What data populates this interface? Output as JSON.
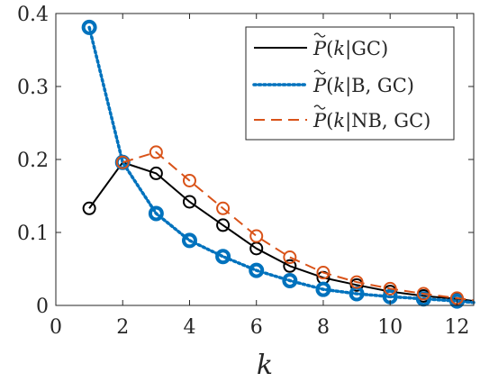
{
  "chart_data": {
    "type": "line",
    "xlabel": "k",
    "ylabel": "",
    "xlim": [
      0,
      12.5
    ],
    "ylim": [
      0,
      0.4
    ],
    "xticks": [
      0,
      2,
      4,
      6,
      8,
      10,
      12
    ],
    "yticks": [
      0,
      0.1,
      0.2,
      0.3,
      0.4
    ],
    "xtick_labels": [
      "0",
      "2",
      "4",
      "6",
      "8",
      "10",
      "12"
    ],
    "ytick_labels": [
      "0",
      "0.1",
      "0.2",
      "0.3",
      "0.4"
    ],
    "grid": false,
    "legend_position": "top-right",
    "series": [
      {
        "name": "P̃(k|GC)",
        "color": "#000000",
        "line_style": "solid",
        "marker": "circle",
        "x": [
          1,
          2,
          3,
          4,
          5,
          6,
          7,
          8,
          9,
          10,
          11,
          12,
          12.5
        ],
        "y": [
          0.133,
          0.196,
          0.181,
          0.142,
          0.11,
          0.078,
          0.054,
          0.038,
          0.028,
          0.019,
          0.013,
          0.009,
          0.006
        ],
        "marker_x": [
          1,
          2,
          3,
          4,
          5,
          6,
          7,
          8,
          9,
          10,
          11,
          12
        ]
      },
      {
        "name": "P̃(k|B,GC)",
        "color": "#0072BD",
        "line_style": "dotted",
        "marker": "circle",
        "x": [
          1,
          2,
          3,
          4,
          5,
          6,
          7,
          8,
          9,
          10,
          11,
          12,
          12.5
        ],
        "y": [
          0.381,
          0.196,
          0.126,
          0.089,
          0.067,
          0.048,
          0.034,
          0.022,
          0.016,
          0.012,
          0.009,
          0.006,
          0.004
        ],
        "marker_x": [
          1,
          2,
          3,
          4,
          5,
          6,
          7,
          8,
          9,
          10,
          11,
          12
        ]
      },
      {
        "name": "P̃(k|NB,GC)",
        "color": "#D95319",
        "line_style": "dashed",
        "marker": "circle",
        "x": [
          2,
          3,
          4,
          5,
          6,
          7,
          8,
          9,
          10,
          11,
          12,
          12.5
        ],
        "y": [
          0.196,
          0.21,
          0.171,
          0.133,
          0.095,
          0.066,
          0.045,
          0.032,
          0.023,
          0.016,
          0.01,
          0.007
        ],
        "marker_x": [
          2,
          3,
          4,
          5,
          6,
          7,
          8,
          9,
          10,
          11,
          12
        ]
      }
    ]
  },
  "legend": {
    "entries": [
      {
        "prefix": "P",
        "k": "k",
        "cond": "GC"
      },
      {
        "prefix": "P",
        "k": "k",
        "cond": "B, GC"
      },
      {
        "prefix": "P",
        "k": "k",
        "cond": "NB, GC"
      }
    ]
  }
}
